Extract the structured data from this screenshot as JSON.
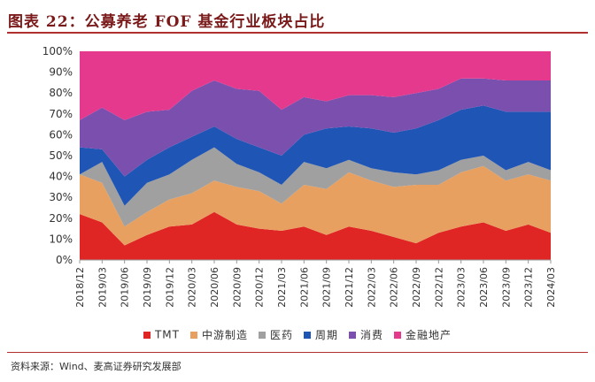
{
  "title": "图表 22：公募养老 FOF 基金行业板块占比",
  "source": "资料来源：Wind、麦高证券研究发展部",
  "chart_data": {
    "type": "area",
    "stacked": true,
    "x": [
      "2018/12",
      "2019/03",
      "2019/06",
      "2019/09",
      "2019/12",
      "2020/03",
      "2020/06",
      "2020/09",
      "2020/12",
      "2021/03",
      "2021/06",
      "2021/09",
      "2021/12",
      "2022/03",
      "2022/06",
      "2022/09",
      "2022/12",
      "2023/03",
      "2023/06",
      "2023/09",
      "2023/12",
      "2024/03"
    ],
    "yticks": [
      "0%",
      "10%",
      "20%",
      "30%",
      "40%",
      "50%",
      "60%",
      "70%",
      "80%",
      "90%",
      "100%"
    ],
    "ylim": [
      0,
      100
    ],
    "legend_position": "bottom",
    "series": [
      {
        "name": "TMT",
        "color": "#e02525",
        "values": [
          22,
          18,
          7,
          12,
          16,
          17,
          23,
          17,
          15,
          14,
          16,
          12,
          16,
          14,
          11,
          8,
          13,
          16,
          18,
          14,
          17,
          13
        ]
      },
      {
        "name": "中游制造",
        "color": "#e8a060",
        "values": [
          19,
          19,
          9,
          11,
          13,
          15,
          15,
          18,
          18,
          13,
          20,
          22,
          26,
          24,
          24,
          28,
          23,
          26,
          27,
          24,
          24,
          25
        ]
      },
      {
        "name": "医药",
        "color": "#a0a0a0",
        "values": [
          0,
          10,
          10,
          14,
          12,
          16,
          16,
          11,
          9,
          9,
          11,
          10,
          6,
          6,
          7,
          5,
          7,
          6,
          5,
          5,
          6,
          5
        ]
      },
      {
        "name": "周期",
        "color": "#1f55b5",
        "values": [
          13,
          6,
          14,
          11,
          13,
          11,
          10,
          12,
          12,
          14,
          13,
          19,
          16,
          19,
          19,
          22,
          24,
          24,
          24,
          28,
          24,
          28
        ]
      },
      {
        "name": "消费",
        "color": "#7a4fae",
        "values": [
          13,
          20,
          27,
          23,
          18,
          22,
          22,
          24,
          27,
          22,
          18,
          13,
          15,
          16,
          17,
          17,
          15,
          15,
          13,
          15,
          15,
          15
        ]
      },
      {
        "name": "金融地产",
        "color": "#e5398e",
        "values": [
          33,
          27,
          33,
          29,
          28,
          19,
          14,
          18,
          19,
          28,
          22,
          24,
          21,
          21,
          22,
          20,
          18,
          13,
          13,
          14,
          14,
          14
        ]
      }
    ]
  }
}
